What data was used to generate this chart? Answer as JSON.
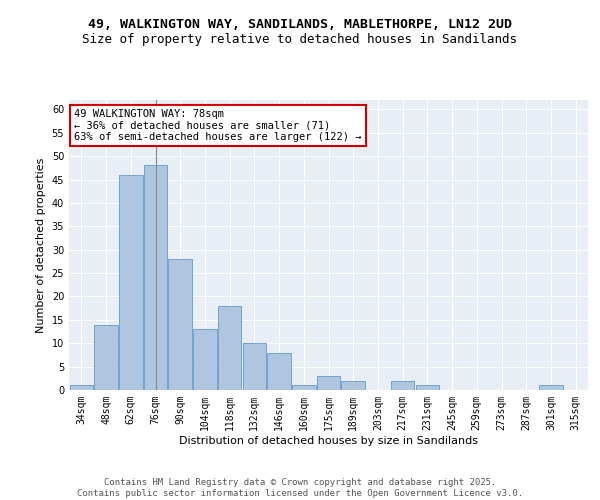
{
  "title1": "49, WALKINGTON WAY, SANDILANDS, MABLETHORPE, LN12 2UD",
  "title2": "Size of property relative to detached houses in Sandilands",
  "xlabel": "Distribution of detached houses by size in Sandilands",
  "ylabel": "Number of detached properties",
  "bar_labels": [
    "34sqm",
    "48sqm",
    "62sqm",
    "76sqm",
    "90sqm",
    "104sqm",
    "118sqm",
    "132sqm",
    "146sqm",
    "160sqm",
    "175sqm",
    "189sqm",
    "203sqm",
    "217sqm",
    "231sqm",
    "245sqm",
    "259sqm",
    "273sqm",
    "287sqm",
    "301sqm",
    "315sqm"
  ],
  "bar_values": [
    1,
    14,
    46,
    48,
    28,
    13,
    18,
    10,
    8,
    1,
    3,
    2,
    0,
    2,
    1,
    0,
    0,
    0,
    0,
    1,
    0
  ],
  "bar_color": "#aec6df",
  "bar_edge_color": "#6699cc",
  "bg_color": "#e8eef5",
  "grid_color": "#ffffff",
  "annotation_text": "49 WALKINGTON WAY: 78sqm\n← 36% of detached houses are smaller (71)\n63% of semi-detached houses are larger (122) →",
  "annotation_box_color": "#ffffff",
  "annotation_box_edge": "#cc0000",
  "vline_color": "#888888",
  "ylim": [
    0,
    62
  ],
  "yticks": [
    0,
    5,
    10,
    15,
    20,
    25,
    30,
    35,
    40,
    45,
    50,
    55,
    60
  ],
  "footer_text": "Contains HM Land Registry data © Crown copyright and database right 2025.\nContains public sector information licensed under the Open Government Licence v3.0.",
  "title_fontsize": 9.5,
  "subtitle_fontsize": 9,
  "axis_label_fontsize": 8,
  "tick_fontsize": 7,
  "annotation_fontsize": 7.5,
  "footer_fontsize": 6.5
}
